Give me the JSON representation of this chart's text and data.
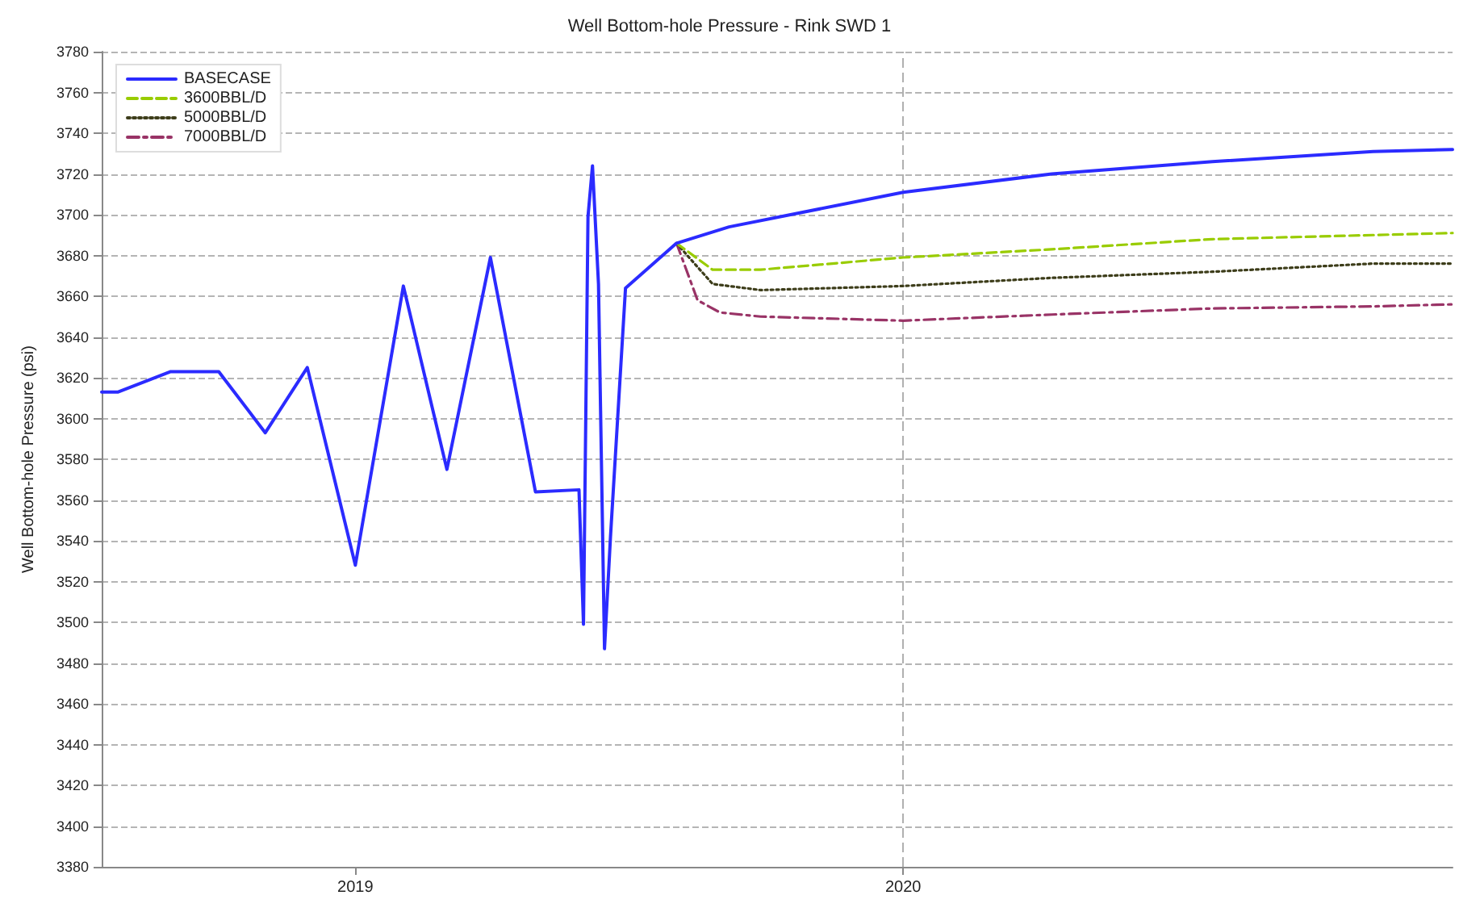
{
  "chart_data": {
    "type": "line",
    "title": "Well Bottom-hole Pressure - Rink SWD 1",
    "ylabel": "Well Bottom-hole Pressure (psi)",
    "xlim": [
      "2018-07-16",
      "2021-01-01"
    ],
    "xticks": [
      "2019",
      "2020"
    ],
    "ylim": [
      3380,
      3780
    ],
    "yticks": [
      3380,
      3400,
      3420,
      3440,
      3460,
      3480,
      3500,
      3520,
      3540,
      3560,
      3580,
      3600,
      3620,
      3640,
      3660,
      3680,
      3700,
      3720,
      3740,
      3760,
      3780
    ],
    "grid": "y",
    "legend": "top left",
    "marker": "none",
    "ref_lines": [
      {
        "axis": "x",
        "value": "2020",
        "label": null,
        "color": "#b0b0b0",
        "line_style": "dashed"
      }
    ],
    "series": [
      {
        "name": "BASECASE",
        "color": "#2b2bff",
        "line_style": "solid",
        "x": [
          "2018-07-16",
          "2018-07-27",
          "2018-08-31",
          "2018-10-02",
          "2018-11-02",
          "2018-11-30",
          "2019-01-01",
          "2019-02-02",
          "2019-03-03",
          "2019-04-01",
          "2019-05-01",
          "2019-05-30",
          "2019-06-02",
          "2019-06-05",
          "2019-06-08",
          "2019-06-12",
          "2019-06-16",
          "2019-06-20",
          "2019-06-30",
          "2019-08-03",
          "2019-09-07",
          "2020-01-01",
          "2020-04-09",
          "2020-07-25",
          "2020-11-09",
          "2021-01-01"
        ],
        "values": [
          3613,
          3613,
          3623,
          3623,
          3593,
          3625,
          3528,
          3665,
          3575,
          3679,
          3564,
          3565,
          3499,
          3699,
          3724,
          3666,
          3487,
          3542,
          3664,
          3686,
          3694,
          3711,
          3720,
          3726,
          3731,
          3732
        ]
      },
      {
        "name": "3600BBL/D",
        "color": "#99cc00",
        "line_style": "dashed",
        "x": [
          "2019-08-03",
          "2019-08-27",
          "2019-09-28",
          "2020-01-01",
          "2020-04-09",
          "2020-07-25",
          "2020-11-09",
          "2021-01-01"
        ],
        "values": [
          3686,
          3673,
          3673,
          3679,
          3683,
          3688,
          3690,
          3691
        ]
      },
      {
        "name": "5000BBL/D",
        "color": "#3d3d1a",
        "line_style": "dotted",
        "x": [
          "2019-08-03",
          "2019-08-27",
          "2019-09-28",
          "2020-01-01",
          "2020-04-09",
          "2020-07-25",
          "2020-11-09",
          "2021-01-01"
        ],
        "values": [
          3686,
          3666,
          3663,
          3665,
          3669,
          3672,
          3676,
          3676
        ]
      },
      {
        "name": "7000BBL/D",
        "color": "#993366",
        "line_style": "dashdot",
        "x": [
          "2019-08-03",
          "2019-08-17",
          "2019-09-01",
          "2019-09-28",
          "2020-01-01",
          "2020-04-09",
          "2020-07-25",
          "2020-11-09",
          "2021-01-01"
        ],
        "values": [
          3686,
          3658,
          3652,
          3650,
          3648,
          3651,
          3654,
          3655,
          3656
        ]
      }
    ]
  }
}
